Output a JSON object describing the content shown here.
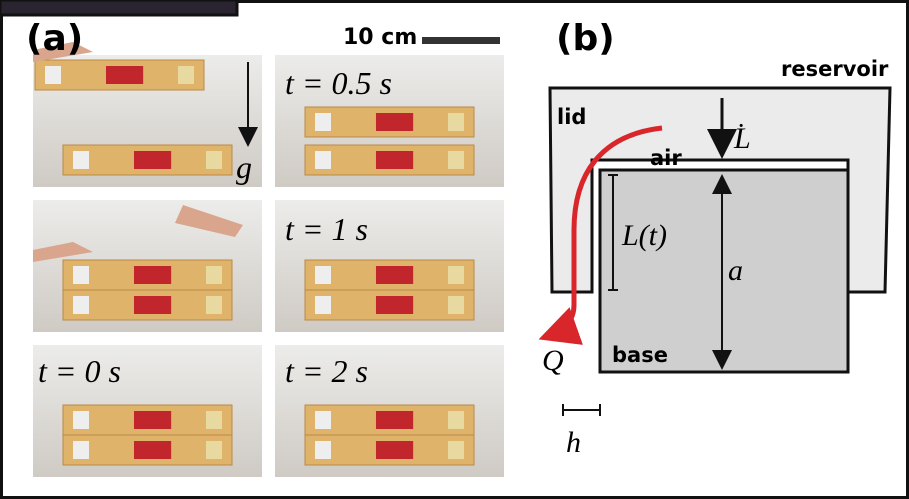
{
  "panel_a": {
    "label": "(a)",
    "scale_bar": "10 cm",
    "gravity": "g",
    "time_labels": [
      "t = 0.5 s",
      "t = 1 s",
      "t = 0 s",
      "t = 2 s"
    ]
  },
  "panel_b": {
    "label": "(b)",
    "reservoir": "reservoir",
    "lid": "lid",
    "air": "air",
    "lid_speed": "L̇",
    "gap_length": "L(t)",
    "base_height": "a",
    "flow": "Q",
    "base": "base",
    "gap_width": "h"
  }
}
